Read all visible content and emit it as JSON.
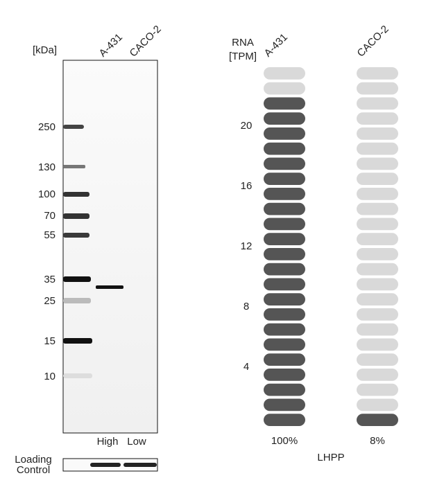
{
  "blot": {
    "unit_label": "[kDa]",
    "lanes": [
      "A-431",
      "CACO-2"
    ],
    "markers": [
      250,
      130,
      100,
      70,
      55,
      35,
      25,
      15,
      10
    ],
    "lane_levels": [
      "High",
      "Low"
    ],
    "loading_control": [
      "Loading",
      "Control"
    ]
  },
  "chart_data": {
    "type": "pill",
    "ylabel": [
      "RNA",
      "[TPM]"
    ],
    "ylim": [
      0,
      24
    ],
    "yticks": [
      4,
      8,
      12,
      16,
      20
    ],
    "empty_color": "#d9d9d9",
    "series": [
      {
        "name": "A-431",
        "values": [
          22
        ],
        "value_labels": [
          "100%"
        ],
        "color": "#555555"
      },
      {
        "name": "CACO-2",
        "values": [
          1.8
        ],
        "value_labels": [
          "8%"
        ],
        "color": "#555555"
      }
    ],
    "gene": "LHPP"
  }
}
